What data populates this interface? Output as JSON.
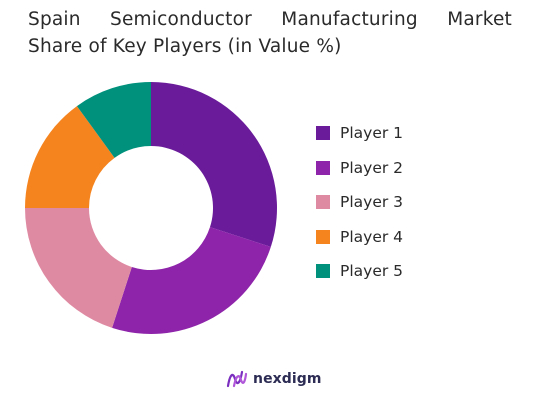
{
  "chart_data": {
    "type": "pie",
    "style": "donut",
    "title_line1": "Spain Semiconductor Manufacturing Market",
    "title_line2": "Share of Key Players (in Value %)",
    "categories": [
      "Player 1",
      "Player 2",
      "Player 3",
      "Player 4",
      "Player 5"
    ],
    "values": [
      30,
      25,
      20,
      15,
      10
    ],
    "colors": [
      "#6a1b9a",
      "#8e24aa",
      "#df8aa3",
      "#f5841f",
      "#00917c"
    ],
    "legend_position": "right"
  },
  "brand": {
    "name": "nexdigm",
    "logo_icon": "nexdigm-logo-icon"
  }
}
